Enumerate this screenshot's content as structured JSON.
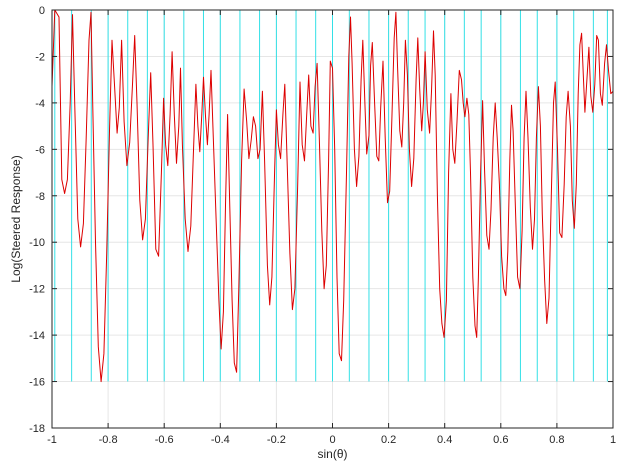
{
  "chart_data": {
    "type": "line",
    "title": "",
    "xlabel": "sin(θ)",
    "ylabel": "Log(Steered Response)",
    "xlim": [
      -1,
      1
    ],
    "ylim": [
      -18,
      0
    ],
    "xticks": [
      -1,
      -0.8,
      -0.6,
      -0.4,
      -0.2,
      0,
      0.2,
      0.4,
      0.6,
      0.8,
      1
    ],
    "xtick_labels": [
      "-1",
      "-0.8",
      "-0.6",
      "-0.4",
      "-0.2",
      "0",
      "0.2",
      "0.4",
      "0.6",
      "0.8",
      "1"
    ],
    "yticks": [
      0,
      -2,
      -4,
      -6,
      -8,
      -10,
      -12,
      -14,
      -16,
      -18
    ],
    "ytick_labels": [
      "0",
      "-2",
      "-4",
      "-6",
      "-8",
      "-10",
      "-12",
      "-14",
      "-16",
      "-18"
    ],
    "grid": true,
    "colors": {
      "response": "#dd0000",
      "markers": "#33e0e6",
      "grid": "#e6e6e6",
      "axes": "#262626"
    },
    "marker_lines": {
      "y_bottom": -16,
      "x": [
        -0.99,
        -0.93,
        -0.86,
        -0.8,
        -0.73,
        -0.66,
        -0.6,
        -0.53,
        -0.46,
        -0.4,
        -0.33,
        -0.26,
        -0.2,
        -0.13,
        -0.06,
        0.0,
        0.06,
        0.13,
        0.2,
        0.27,
        0.33,
        0.4,
        0.47,
        0.53,
        0.6,
        0.67,
        0.73,
        0.8,
        0.86,
        0.93,
        0.98
      ]
    },
    "series": [
      {
        "points": [
          [
            -1.0,
            -3.3
          ],
          [
            -0.99,
            0.0
          ],
          [
            -0.975,
            -0.3
          ],
          [
            -0.965,
            -7.3
          ],
          [
            -0.955,
            -7.9
          ],
          [
            -0.945,
            -7.3
          ],
          [
            -0.935,
            -4.0
          ],
          [
            -0.927,
            -0.2
          ],
          [
            -0.918,
            -4.5
          ],
          [
            -0.908,
            -9.0
          ],
          [
            -0.898,
            -10.2
          ],
          [
            -0.888,
            -9.2
          ],
          [
            -0.878,
            -5.5
          ],
          [
            -0.868,
            -1.3
          ],
          [
            -0.861,
            -0.1
          ],
          [
            -0.855,
            -4.0
          ],
          [
            -0.845,
            -10.0
          ],
          [
            -0.835,
            -14.5
          ],
          [
            -0.825,
            -16.0
          ],
          [
            -0.815,
            -14.8
          ],
          [
            -0.805,
            -10.5
          ],
          [
            -0.795,
            -5.2
          ],
          [
            -0.786,
            -1.3
          ],
          [
            -0.777,
            -3.3
          ],
          [
            -0.768,
            -5.3
          ],
          [
            -0.76,
            -4.2
          ],
          [
            -0.752,
            -1.3
          ],
          [
            -0.743,
            -4.8
          ],
          [
            -0.733,
            -6.7
          ],
          [
            -0.723,
            -5.7
          ],
          [
            -0.713,
            -3.2
          ],
          [
            -0.705,
            -1.1
          ],
          [
            -0.697,
            -4.0
          ],
          [
            -0.687,
            -8.2
          ],
          [
            -0.677,
            -9.9
          ],
          [
            -0.667,
            -9.0
          ],
          [
            -0.657,
            -5.5
          ],
          [
            -0.648,
            -2.7
          ],
          [
            -0.64,
            -5.8
          ],
          [
            -0.63,
            -10.3
          ],
          [
            -0.62,
            -10.6
          ],
          [
            -0.61,
            -7.0
          ],
          [
            -0.602,
            -3.8
          ],
          [
            -0.595,
            -5.8
          ],
          [
            -0.587,
            -6.7
          ],
          [
            -0.579,
            -4.5
          ],
          [
            -0.572,
            -1.8
          ],
          [
            -0.564,
            -4.5
          ],
          [
            -0.556,
            -6.6
          ],
          [
            -0.548,
            -5.0
          ],
          [
            -0.542,
            -2.5
          ],
          [
            -0.535,
            -5.8
          ],
          [
            -0.525,
            -9.0
          ],
          [
            -0.515,
            -10.4
          ],
          [
            -0.505,
            -9.3
          ],
          [
            -0.495,
            -5.8
          ],
          [
            -0.487,
            -3.2
          ],
          [
            -0.48,
            -5.0
          ],
          [
            -0.473,
            -6.1
          ],
          [
            -0.466,
            -4.5
          ],
          [
            -0.46,
            -2.9
          ],
          [
            -0.453,
            -4.5
          ],
          [
            -0.446,
            -5.8
          ],
          [
            -0.44,
            -4.5
          ],
          [
            -0.433,
            -2.6
          ],
          [
            -0.425,
            -5.5
          ],
          [
            -0.415,
            -9.0
          ],
          [
            -0.405,
            -12.5
          ],
          [
            -0.397,
            -14.6
          ],
          [
            -0.389,
            -13.0
          ],
          [
            -0.381,
            -8.2
          ],
          [
            -0.374,
            -4.5
          ],
          [
            -0.366,
            -8.5
          ],
          [
            -0.358,
            -12.5
          ],
          [
            -0.35,
            -15.2
          ],
          [
            -0.342,
            -15.6
          ],
          [
            -0.334,
            -12.0
          ],
          [
            -0.324,
            -6.5
          ],
          [
            -0.315,
            -3.4
          ],
          [
            -0.306,
            -4.8
          ],
          [
            -0.298,
            -6.4
          ],
          [
            -0.29,
            -5.6
          ],
          [
            -0.282,
            -4.6
          ],
          [
            -0.274,
            -5.0
          ],
          [
            -0.266,
            -6.4
          ],
          [
            -0.258,
            -6.0
          ],
          [
            -0.25,
            -3.5
          ],
          [
            -0.242,
            -6.5
          ],
          [
            -0.232,
            -11.0
          ],
          [
            -0.224,
            -12.7
          ],
          [
            -0.216,
            -11.5
          ],
          [
            -0.206,
            -6.8
          ],
          [
            -0.2,
            -4.3
          ],
          [
            -0.193,
            -5.8
          ],
          [
            -0.185,
            -6.4
          ],
          [
            -0.177,
            -4.5
          ],
          [
            -0.17,
            -3.2
          ],
          [
            -0.162,
            -6.5
          ],
          [
            -0.152,
            -10.5
          ],
          [
            -0.143,
            -12.9
          ],
          [
            -0.134,
            -12.0
          ],
          [
            -0.124,
            -7.5
          ],
          [
            -0.116,
            -3.1
          ],
          [
            -0.108,
            -5.8
          ],
          [
            -0.1,
            -6.5
          ],
          [
            -0.092,
            -4.5
          ],
          [
            -0.085,
            -2.8
          ],
          [
            -0.077,
            -5.0
          ],
          [
            -0.069,
            -5.3
          ],
          [
            -0.062,
            -3.3
          ],
          [
            -0.055,
            -2.3
          ],
          [
            -0.047,
            -5.5
          ],
          [
            -0.038,
            -9.5
          ],
          [
            -0.03,
            -12.0
          ],
          [
            -0.022,
            -11.0
          ],
          [
            -0.014,
            -6.5
          ],
          [
            -0.008,
            -2.2
          ],
          [
            0.0,
            -2.5
          ],
          [
            0.008,
            -6.0
          ],
          [
            0.016,
            -11.5
          ],
          [
            0.024,
            -14.8
          ],
          [
            0.032,
            -15.1
          ],
          [
            0.04,
            -12.5
          ],
          [
            0.05,
            -7.0
          ],
          [
            0.058,
            -2.0
          ],
          [
            0.064,
            -0.3
          ],
          [
            0.07,
            -2.3
          ],
          [
            0.078,
            -6.0
          ],
          [
            0.086,
            -7.6
          ],
          [
            0.094,
            -6.3
          ],
          [
            0.102,
            -3.0
          ],
          [
            0.108,
            -1.3
          ],
          [
            0.115,
            -3.9
          ],
          [
            0.122,
            -6.2
          ],
          [
            0.13,
            -5.4
          ],
          [
            0.136,
            -2.4
          ],
          [
            0.142,
            -1.4
          ],
          [
            0.15,
            -4.0
          ],
          [
            0.158,
            -6.3
          ],
          [
            0.165,
            -6.5
          ],
          [
            0.172,
            -4.2
          ],
          [
            0.18,
            -2.2
          ],
          [
            0.188,
            -5.5
          ],
          [
            0.196,
            -8.3
          ],
          [
            0.204,
            -7.8
          ],
          [
            0.212,
            -4.5
          ],
          [
            0.22,
            -1.2
          ],
          [
            0.226,
            -0.1
          ],
          [
            0.232,
            -2.5
          ],
          [
            0.24,
            -5.2
          ],
          [
            0.247,
            -5.9
          ],
          [
            0.254,
            -4.0
          ],
          [
            0.26,
            -1.3
          ],
          [
            0.267,
            -2.8
          ],
          [
            0.274,
            -6.0
          ],
          [
            0.282,
            -7.6
          ],
          [
            0.29,
            -6.4
          ],
          [
            0.298,
            -3.0
          ],
          [
            0.304,
            -1.2
          ],
          [
            0.311,
            -3.4
          ],
          [
            0.318,
            -5.2
          ],
          [
            0.324,
            -4.0
          ],
          [
            0.33,
            -1.8
          ],
          [
            0.338,
            -4.3
          ],
          [
            0.346,
            -5.3
          ],
          [
            0.353,
            -3.5
          ],
          [
            0.36,
            -0.9
          ],
          [
            0.366,
            -2.8
          ],
          [
            0.374,
            -8.0
          ],
          [
            0.382,
            -12.0
          ],
          [
            0.39,
            -13.5
          ],
          [
            0.398,
            -14.1
          ],
          [
            0.406,
            -12.5
          ],
          [
            0.414,
            -7.0
          ],
          [
            0.422,
            -3.6
          ],
          [
            0.429,
            -6.0
          ],
          [
            0.436,
            -6.6
          ],
          [
            0.444,
            -4.8
          ],
          [
            0.452,
            -2.6
          ],
          [
            0.46,
            -3.0
          ],
          [
            0.466,
            -4.0
          ],
          [
            0.472,
            -4.6
          ],
          [
            0.479,
            -3.8
          ],
          [
            0.486,
            -4.5
          ],
          [
            0.492,
            -7.0
          ],
          [
            0.5,
            -11.5
          ],
          [
            0.508,
            -13.6
          ],
          [
            0.514,
            -14.1
          ],
          [
            0.52,
            -11.5
          ],
          [
            0.528,
            -7.0
          ],
          [
            0.535,
            -3.9
          ],
          [
            0.542,
            -6.8
          ],
          [
            0.55,
            -9.7
          ],
          [
            0.558,
            -10.3
          ],
          [
            0.565,
            -8.6
          ],
          [
            0.573,
            -5.5
          ],
          [
            0.58,
            -4.0
          ],
          [
            0.587,
            -5.5
          ],
          [
            0.595,
            -7.5
          ],
          [
            0.603,
            -10.6
          ],
          [
            0.611,
            -12.0
          ],
          [
            0.618,
            -12.3
          ],
          [
            0.625,
            -10.4
          ],
          [
            0.632,
            -6.5
          ],
          [
            0.638,
            -4.1
          ],
          [
            0.644,
            -5.2
          ],
          [
            0.652,
            -8.5
          ],
          [
            0.66,
            -11.5
          ],
          [
            0.668,
            -12.0
          ],
          [
            0.676,
            -9.5
          ],
          [
            0.683,
            -5.5
          ],
          [
            0.69,
            -3.5
          ],
          [
            0.697,
            -5.5
          ],
          [
            0.705,
            -8.5
          ],
          [
            0.713,
            -10.3
          ],
          [
            0.72,
            -9.0
          ],
          [
            0.727,
            -5.5
          ],
          [
            0.734,
            -3.3
          ],
          [
            0.741,
            -5.0
          ],
          [
            0.748,
            -8.8
          ],
          [
            0.756,
            -11.6
          ],
          [
            0.764,
            -13.5
          ],
          [
            0.772,
            -12.4
          ],
          [
            0.78,
            -8.0
          ],
          [
            0.788,
            -4.0
          ],
          [
            0.794,
            -3.1
          ],
          [
            0.802,
            -6.0
          ],
          [
            0.81,
            -9.6
          ],
          [
            0.818,
            -9.8
          ],
          [
            0.826,
            -7.5
          ],
          [
            0.833,
            -4.6
          ],
          [
            0.84,
            -3.5
          ],
          [
            0.848,
            -5.0
          ],
          [
            0.855,
            -8.2
          ],
          [
            0.862,
            -9.4
          ],
          [
            0.869,
            -7.5
          ],
          [
            0.876,
            -3.6
          ],
          [
            0.882,
            -1.5
          ],
          [
            0.888,
            -1.0
          ],
          [
            0.894,
            -2.8
          ],
          [
            0.9,
            -4.4
          ],
          [
            0.907,
            -3.0
          ],
          [
            0.914,
            -1.6
          ],
          [
            0.921,
            -3.7
          ],
          [
            0.928,
            -4.4
          ],
          [
            0.935,
            -3.2
          ],
          [
            0.942,
            -1.1
          ],
          [
            0.948,
            -1.3
          ],
          [
            0.955,
            -3.6
          ],
          [
            0.962,
            -4.1
          ],
          [
            0.97,
            -2.3
          ],
          [
            0.977,
            -1.5
          ],
          [
            0.984,
            -2.6
          ],
          [
            0.992,
            -3.6
          ],
          [
            1.0,
            -3.5
          ]
        ]
      }
    ]
  }
}
